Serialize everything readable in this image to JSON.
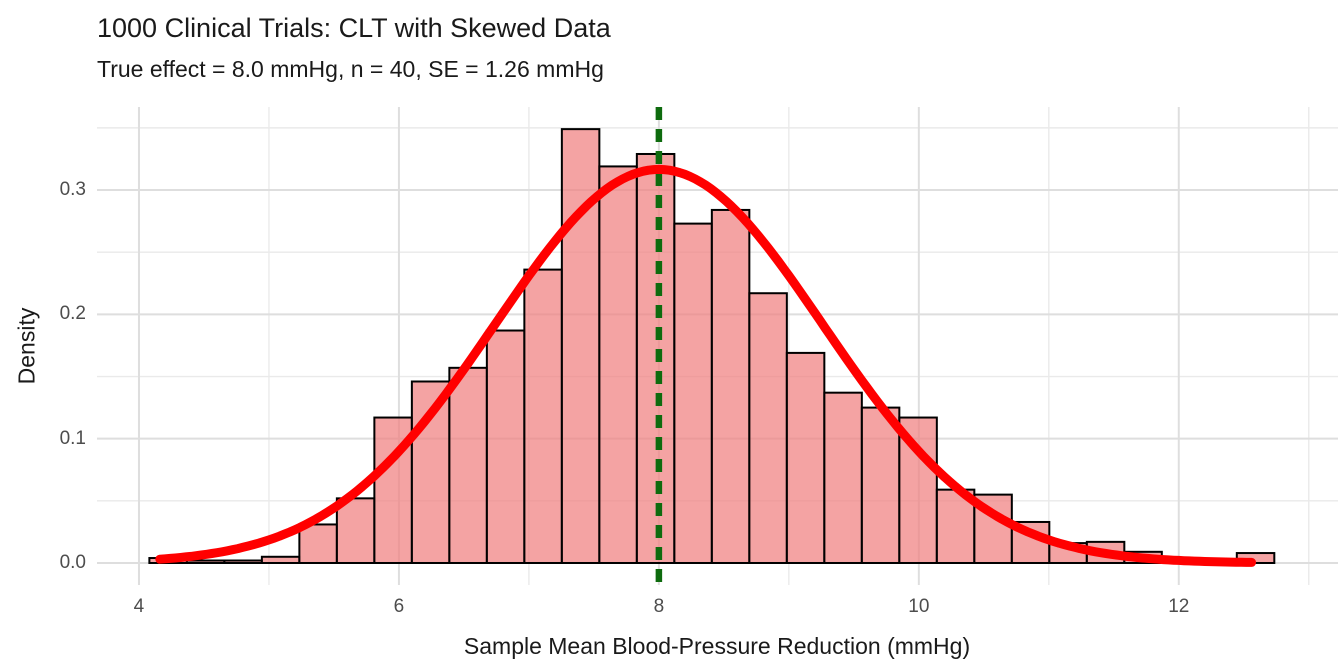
{
  "header": {
    "title": "1000 Clinical Trials: CLT with Skewed Data",
    "subtitle": "True effect = 8.0 mmHg, n = 40, SE = 1.26 mmHg"
  },
  "chart_data": {
    "type": "bar",
    "subtype": "histogram-with-normal-curve",
    "title": "1000 Clinical Trials: CLT with Skewed Data",
    "subtitle": "True effect = 8.0 mmHg, n = 40, SE = 1.26 mmHg",
    "xlabel": "Sample Mean Blood-Pressure Reduction (mmHg)",
    "ylabel": "Density",
    "xlim": [
      3.677,
      13.225
    ],
    "ylim": [
      -0.0177,
      0.3668
    ],
    "x_major_ticks": [
      4,
      6,
      8,
      10,
      12
    ],
    "x_tick_labels": [
      "4",
      "6",
      "8",
      "10",
      "12"
    ],
    "x_minor_ticks": [
      5,
      7,
      9,
      11,
      13
    ],
    "y_major_ticks": [
      0.0,
      0.1,
      0.2,
      0.3
    ],
    "y_tick_labels": [
      "0.0",
      "0.1",
      "0.2",
      "0.3"
    ],
    "y_minor_ticks": [
      0.05,
      0.15,
      0.25,
      0.35
    ],
    "grid": "on",
    "legend_position": "none",
    "histogram": {
      "n_trials": 1000,
      "bin_start": 4.08,
      "bin_width": 0.2885,
      "densities": [
        0.004,
        0.002,
        0.002,
        0.005,
        0.031,
        0.052,
        0.117,
        0.146,
        0.157,
        0.187,
        0.236,
        0.349,
        0.319,
        0.329,
        0.273,
        0.284,
        0.217,
        0.169,
        0.137,
        0.125,
        0.117,
        0.059,
        0.055,
        0.033,
        0.016,
        0.017,
        0.009,
        0.004,
        0.0,
        0.008
      ]
    },
    "normal_curve": {
      "mean": 8.0,
      "sd": 1.26,
      "peak_density": 0.3166,
      "x_range": [
        4.16,
        12.57
      ]
    },
    "vline": {
      "x": 8.0,
      "style": "dashed"
    },
    "colors": {
      "bar_fill": "rgba(240,128,128,0.72)",
      "bar_outline": "#000000",
      "curve": "#ff0000",
      "vline": "#0e6b0e",
      "grid_major": "#dedede",
      "grid_minor": "#eaeaea",
      "tick_text": "#4d4d4d",
      "title_text": "#1a1a1a",
      "background": "#ffffff"
    }
  }
}
